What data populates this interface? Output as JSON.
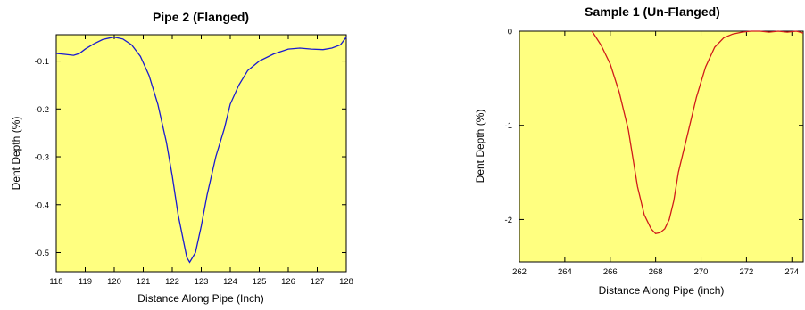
{
  "chart_data": [
    {
      "type": "line",
      "title": "Pipe 2 (Flanged)",
      "xlabel": "Distance Along Pipe (Inch)",
      "ylabel": "Dent Depth (%)",
      "xlim": [
        118,
        128
      ],
      "ylim": [
        -0.54,
        -0.045
      ],
      "xticks": [
        118,
        119,
        120,
        121,
        122,
        123,
        124,
        125,
        126,
        127,
        128
      ],
      "yticks": [
        -0.1,
        -0.2,
        -0.3,
        -0.4,
        -0.5
      ],
      "xtick_labels": [
        "118",
        "119",
        "120",
        "121",
        "122",
        "123",
        "124",
        "125",
        "126",
        "127",
        "128"
      ],
      "ytick_labels": [
        "-0.1",
        "-0.2",
        "-0.3",
        "-0.4",
        "-0.5"
      ],
      "grid": false,
      "color": "#1a1ad0",
      "series": [
        {
          "x": [
            118,
            118.3,
            118.6,
            118.8,
            119.0,
            119.3,
            119.6,
            119.9,
            120.0,
            120.3,
            120.6,
            120.9,
            121.2,
            121.5,
            121.8,
            122.0,
            122.2,
            122.4,
            122.5,
            122.6,
            122.8,
            123.0,
            123.2,
            123.5,
            123.8,
            124.0,
            124.3,
            124.6,
            125.0,
            125.5,
            126.0,
            126.4,
            126.8,
            127.2,
            127.5,
            127.8,
            128.0
          ],
          "y": [
            -0.084,
            -0.086,
            -0.088,
            -0.084,
            -0.075,
            -0.064,
            -0.055,
            -0.051,
            -0.05,
            -0.054,
            -0.066,
            -0.09,
            -0.13,
            -0.19,
            -0.27,
            -0.34,
            -0.42,
            -0.48,
            -0.51,
            -0.52,
            -0.5,
            -0.445,
            -0.38,
            -0.3,
            -0.24,
            -0.19,
            -0.15,
            -0.12,
            -0.1,
            -0.085,
            -0.075,
            -0.073,
            -0.075,
            -0.076,
            -0.073,
            -0.066,
            -0.05
          ]
        }
      ]
    },
    {
      "type": "line",
      "title": "Sample 1 (Un-Flanged)",
      "xlabel": "Distance Along Pipe (inch)",
      "ylabel": "Dent Depth (%)",
      "xlim": [
        262,
        274.5
      ],
      "ylim": [
        -2.45,
        0
      ],
      "xticks": [
        262,
        264,
        266,
        268,
        270,
        272,
        274
      ],
      "yticks": [
        0,
        -1,
        -2
      ],
      "xtick_labels": [
        "262",
        "264",
        "266",
        "268",
        "270",
        "272",
        "274"
      ],
      "ytick_labels": [
        "0",
        "-1",
        "-2"
      ],
      "grid": false,
      "color": "#d01a1a",
      "series": [
        {
          "x": [
            265.2,
            265.6,
            266.0,
            266.4,
            266.8,
            267.0,
            267.2,
            267.5,
            267.8,
            268.0,
            268.2,
            268.4,
            268.6,
            268.8,
            269.0,
            269.4,
            269.8,
            270.2,
            270.6,
            271.0,
            271.4,
            271.8,
            272.2,
            272.6,
            273.0,
            273.4,
            273.8,
            274.2,
            274.5
          ],
          "y": [
            0.0,
            -0.15,
            -0.35,
            -0.65,
            -1.05,
            -1.35,
            -1.65,
            -1.95,
            -2.1,
            -2.15,
            -2.14,
            -2.1,
            -2.0,
            -1.8,
            -1.5,
            -1.1,
            -0.7,
            -0.38,
            -0.17,
            -0.07,
            -0.03,
            -0.01,
            0.0,
            0.0,
            -0.01,
            0.0,
            -0.01,
            0.0,
            -0.02
          ]
        }
      ]
    }
  ]
}
